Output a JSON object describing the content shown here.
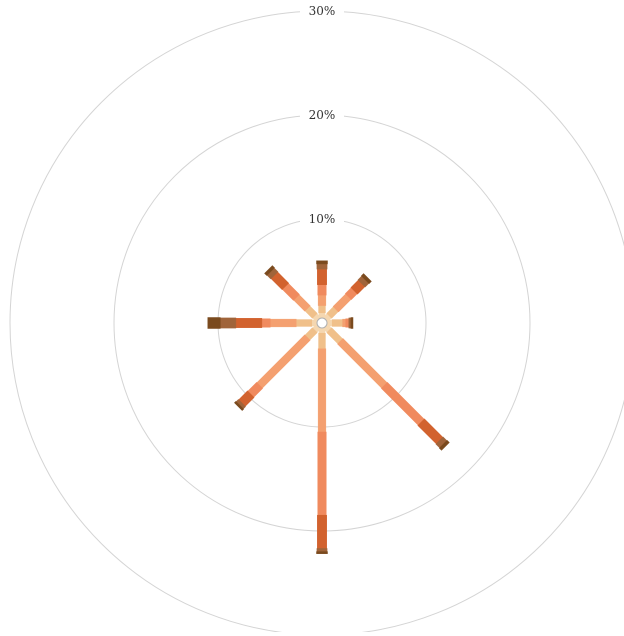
{
  "chart_data": {
    "type": "radial-stacked-bar",
    "title": "",
    "radial_axis": {
      "min": 0,
      "max": 30,
      "ticks": [
        10,
        20,
        30
      ],
      "tick_labels": [
        "10%",
        "20%",
        "30%"
      ],
      "grid": true
    },
    "directions": [
      {
        "angle_deg": 0
      },
      {
        "angle_deg": 45
      },
      {
        "angle_deg": 90
      },
      {
        "angle_deg": 135
      },
      {
        "angle_deg": 180
      },
      {
        "angle_deg": 225
      },
      {
        "angle_deg": 270
      },
      {
        "angle_deg": 315
      }
    ],
    "series": [
      {
        "color": "#F5D7B0",
        "values": [
          0.5,
          0.5,
          0.5,
          0.5,
          0.5,
          0.5,
          0.5,
          0.5
        ]
      },
      {
        "color": "#F0C08A",
        "values": [
          1.0,
          1.5,
          1.5,
          1.0,
          1.5,
          1.0,
          0.7,
          0.9
        ]
      },
      {
        "color": "#F4A070",
        "values": [
          0.3,
          6.0,
          8.0,
          6.5,
          2.5,
          1.5,
          1.0,
          1.7
        ]
      },
      {
        "color": "#F08A5E",
        "values": [
          0.3,
          5.0,
          8.0,
          1.2,
          0.8,
          1.5,
          1.0,
          0.8
        ]
      },
      {
        "color": "#D2622E",
        "values": [
          0.0,
          2.5,
          3.2,
          1.2,
          2.5,
          1.5,
          1.5,
          1.0
        ]
      },
      {
        "color": "#A0643A",
        "values": [
          0.2,
          0.5,
          0.3,
          0.3,
          1.5,
          0.5,
          0.5,
          0.5
        ]
      },
      {
        "color": "#7A4A1E",
        "values": [
          0.2,
          0.3,
          0.2,
          0.2,
          1.2,
          0.3,
          0.3,
          0.3
        ]
      }
    ]
  }
}
